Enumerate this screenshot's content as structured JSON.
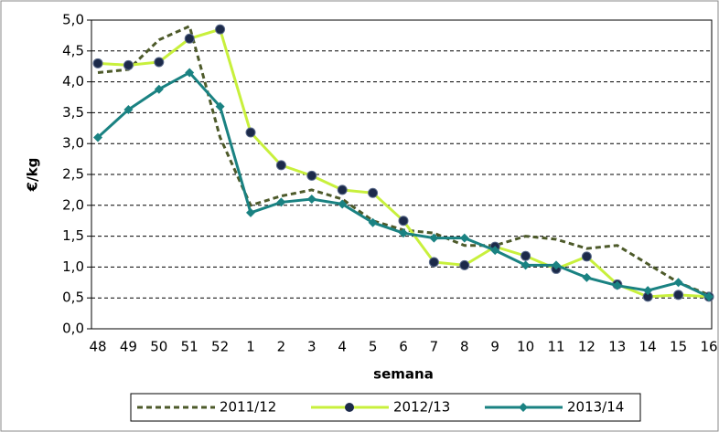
{
  "chart_data": {
    "type": "line",
    "y_label": "€/kg",
    "x_label": "semana",
    "categories": [
      "48",
      "49",
      "50",
      "51",
      "52",
      "1",
      "2",
      "3",
      "4",
      "5",
      "6",
      "7",
      "8",
      "9",
      "10",
      "11",
      "12",
      "13",
      "14",
      "15",
      "16"
    ],
    "series": [
      {
        "name": "2011/12",
        "color": "#4d5a2a",
        "dash": true,
        "marker": "none",
        "values": [
          4.15,
          4.2,
          4.68,
          4.9,
          3.1,
          2.0,
          2.15,
          2.25,
          2.1,
          1.75,
          1.6,
          1.55,
          1.35,
          1.35,
          1.5,
          1.45,
          1.3,
          1.35,
          1.05,
          0.75,
          0.55
        ]
      },
      {
        "name": "2012/13",
        "color": "#c8f03c",
        "dash": false,
        "marker": "circle",
        "marker_color": "#1c2a4a",
        "values": [
          4.3,
          4.27,
          4.32,
          4.7,
          4.85,
          3.18,
          2.65,
          2.48,
          2.25,
          2.2,
          1.75,
          1.08,
          1.03,
          1.33,
          1.18,
          0.97,
          1.17,
          0.72,
          0.52,
          0.55,
          0.52
        ]
      },
      {
        "name": "2013/14",
        "color": "#1a8282",
        "dash": false,
        "marker": "diamond",
        "marker_color": "#1a8282",
        "values": [
          3.1,
          3.55,
          3.88,
          4.15,
          3.6,
          1.88,
          2.05,
          2.1,
          2.02,
          1.72,
          1.55,
          1.47,
          1.47,
          1.27,
          1.03,
          1.03,
          0.83,
          0.7,
          0.62,
          0.75,
          0.52
        ]
      }
    ],
    "ylim": [
      0,
      5
    ],
    "yticks": [
      {
        "value": 0,
        "label": "0,0"
      },
      {
        "value": 0.5,
        "label": "0,5"
      },
      {
        "value": 1,
        "label": "1,0"
      },
      {
        "value": 1.5,
        "label": "1,5"
      },
      {
        "value": 2,
        "label": "2,0"
      },
      {
        "value": 2.5,
        "label": "2,5"
      },
      {
        "value": 3,
        "label": "3,0"
      },
      {
        "value": 3.5,
        "label": "3,5"
      },
      {
        "value": 4,
        "label": "4,0"
      },
      {
        "value": 4.5,
        "label": "4,5"
      },
      {
        "value": 5,
        "label": "5,0"
      }
    ],
    "grid": true,
    "legend": "bottom"
  }
}
